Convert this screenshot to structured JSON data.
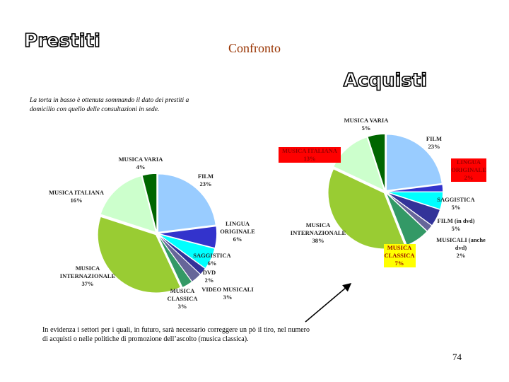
{
  "slide": {
    "heading": "Confronto",
    "note": "La torta in basso è ottenuta sommando il dato dei prestiti a domicilio con quello delle consultazioni in sede.",
    "comment": "In evidenza i settori per i quali, in futuro, sarà necessario correggere un pò il tiro, nel numero di acquisti o nelle politiche di promozione dell’ascolto (musica classica).",
    "page_number": "74"
  },
  "chart_data": [
    {
      "type": "pie",
      "title": "Prestiti",
      "categories": [
        "FILM",
        "LINGUA ORIGINALE",
        "SAGGISTICA",
        "DVD",
        "VIDEO MUSICALI",
        "MUSICA CLASSICA",
        "MUSICA INTERNAZIONALE",
        "MUSICA ITALIANA",
        "MUSICA VARIA"
      ],
      "values": [
        23,
        6,
        6,
        2,
        3,
        3,
        37,
        16,
        4
      ],
      "value_labels": [
        "23%",
        "6%",
        "6%",
        "2%",
        "3%",
        "3%",
        "37%",
        "16%",
        "4%"
      ],
      "colors": [
        "#99ccff",
        "#3333cc",
        "#00ffff",
        "#333399",
        "#666699",
        "#339966",
        "#99cc33",
        "#ccffcc",
        "#006600"
      ]
    },
    {
      "type": "pie",
      "title": "Acquisti",
      "categories": [
        "FILM",
        "LINGUA ORIGINALE",
        "SAGGISTICA",
        "FILM (in dvd)",
        "MUSICALI (anche dvd)",
        "MUSICA CLASSICA",
        "MUSICA INTERNAZIONALE",
        "MUSICA ITALIANA",
        "MUSICA VARIA"
      ],
      "values": [
        23,
        2,
        5,
        5,
        2,
        7,
        38,
        13,
        5
      ],
      "value_labels": [
        "23%",
        "2%",
        "5%",
        "5%",
        "2%",
        "7%",
        "38%",
        "13%",
        "5%"
      ],
      "colors": [
        "#99ccff",
        "#3333cc",
        "#00ffff",
        "#333399",
        "#666699",
        "#339966",
        "#99cc33",
        "#ccffcc",
        "#006600"
      ],
      "label_highlights": [
        {
          "index": 1,
          "color": "#ff0000"
        },
        {
          "index": 5,
          "color": "#ffff00"
        },
        {
          "index": 7,
          "color": "#ff0000"
        }
      ]
    }
  ]
}
